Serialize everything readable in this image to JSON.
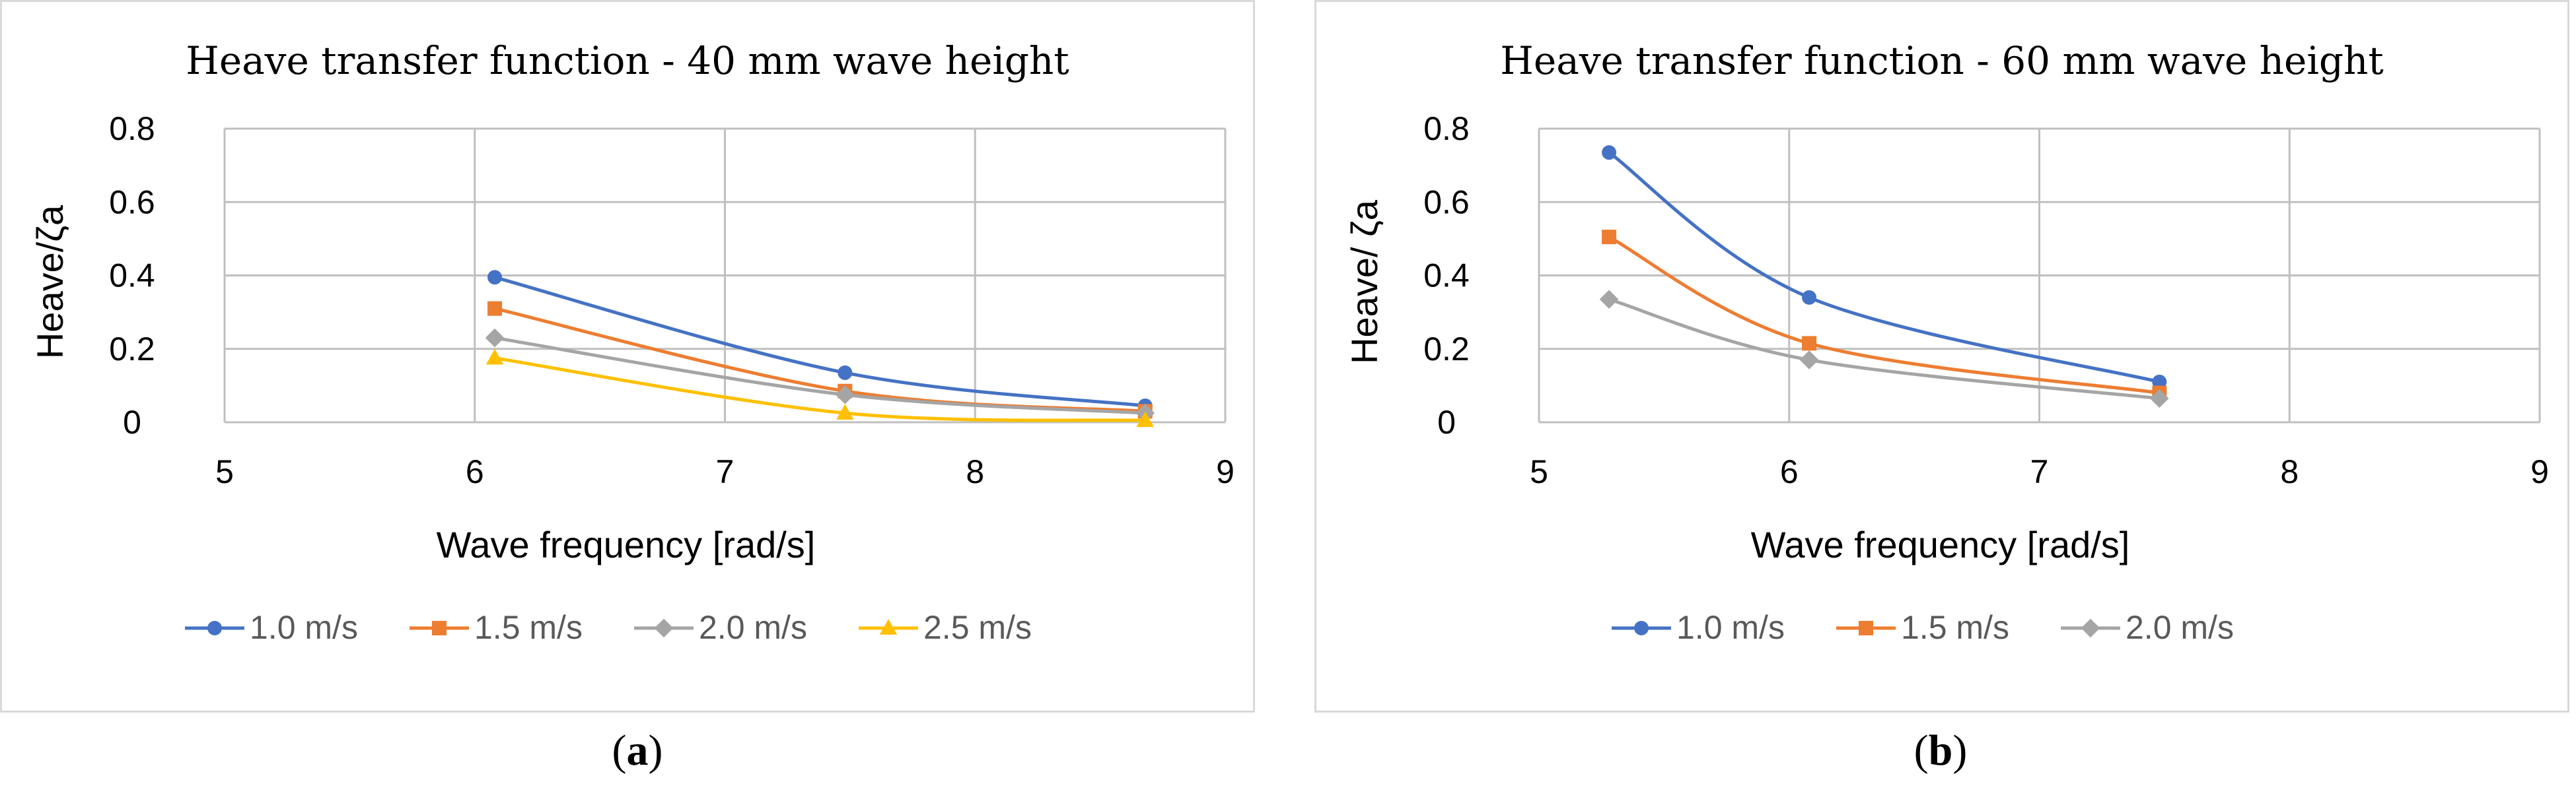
{
  "chart_data": [
    {
      "type": "line",
      "title": "Heave transfer function - 40 mm wave height",
      "xlabel": "Wave frequency [rad/s]",
      "ylabel": "Heave/ζa",
      "xlim": [
        5,
        9
      ],
      "ylim": [
        0,
        0.8
      ],
      "xticks": [
        "5",
        "6",
        "7",
        "8",
        "9"
      ],
      "yticks": [
        "0",
        "0.2",
        "0.4",
        "0.6",
        "0.8"
      ],
      "grid": true,
      "legend_position": "bottom",
      "caption": "a",
      "series": [
        {
          "name": "1.0 m/s",
          "color": "#4472C4",
          "marker": "circle",
          "x": [
            6.08,
            7.48,
            8.68
          ],
          "values": [
            0.395,
            0.135,
            0.045
          ]
        },
        {
          "name": "1.5 m/s",
          "color": "#ED7D31",
          "marker": "square",
          "x": [
            6.08,
            7.48,
            8.68
          ],
          "values": [
            0.31,
            0.085,
            0.03
          ]
        },
        {
          "name": "2.0 m/s",
          "color": "#A5A5A5",
          "marker": "diamond",
          "x": [
            6.08,
            7.48,
            8.68
          ],
          "values": [
            0.23,
            0.075,
            0.025
          ]
        },
        {
          "name": "2.5 m/s",
          "color": "#FFC000",
          "marker": "triangle",
          "x": [
            6.08,
            7.48,
            8.68
          ],
          "values": [
            0.175,
            0.025,
            0.005
          ]
        }
      ]
    },
    {
      "type": "line",
      "title": "Heave transfer function - 60 mm wave height",
      "xlabel": "Wave frequency [rad/s]",
      "ylabel": "Heave/ ζa",
      "xlim": [
        5,
        9
      ],
      "ylim": [
        0,
        0.8
      ],
      "xticks": [
        "5",
        "6",
        "7",
        "8",
        "9"
      ],
      "yticks": [
        "0",
        "0.2",
        "0.4",
        "0.6",
        "0.8"
      ],
      "grid": true,
      "legend_position": "bottom",
      "caption": "b",
      "series": [
        {
          "name": "1.0 m/s",
          "color": "#4472C4",
          "marker": "circle",
          "x": [
            5.28,
            6.08,
            7.48
          ],
          "values": [
            0.735,
            0.34,
            0.11
          ]
        },
        {
          "name": "1.5 m/s",
          "color": "#ED7D31",
          "marker": "square",
          "x": [
            5.28,
            6.08,
            7.48
          ],
          "values": [
            0.505,
            0.215,
            0.08
          ]
        },
        {
          "name": "2.0 m/s",
          "color": "#A5A5A5",
          "marker": "diamond",
          "x": [
            5.28,
            6.08,
            7.48
          ],
          "values": [
            0.335,
            0.17,
            0.065
          ]
        }
      ]
    }
  ]
}
